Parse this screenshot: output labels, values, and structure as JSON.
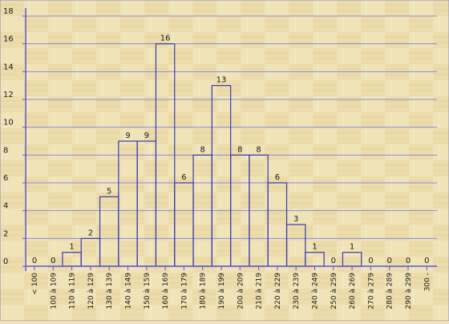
{
  "chart_data": {
    "type": "bar",
    "title": "",
    "xlabel": "",
    "ylabel": "",
    "ylim": [
      0,
      18
    ],
    "yticks": [
      0,
      2,
      4,
      6,
      8,
      10,
      12,
      14,
      16,
      18
    ],
    "grid": true,
    "categories": [
      "< 100",
      "100 à 109",
      "110 à 119",
      "120 à 129",
      "130 à 139",
      "140 à 149",
      "150 à 159",
      "160 à 169",
      "170 à 179",
      "180 à 189",
      "190 à 199",
      "200 à 209",
      "210 à 219",
      "220 à 229",
      "230 à 239",
      "240 à 249",
      "250 à 259",
      "260 à 269",
      "270 à 279",
      "280 à 289",
      "290 à 299",
      "300 -"
    ],
    "values": [
      0,
      0,
      1,
      2,
      5,
      9,
      9,
      16,
      6,
      8,
      13,
      8,
      8,
      6,
      3,
      1,
      0,
      1,
      0,
      0,
      0,
      0
    ],
    "colors": {
      "bar_stroke": "#3a3ab0",
      "axis": "#5a5ad0",
      "grid": "#8a8ae0",
      "label": "#1a1a1a",
      "background": "#f0e2b6"
    }
  }
}
